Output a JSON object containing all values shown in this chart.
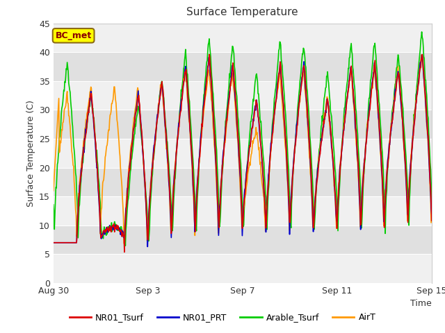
{
  "title": "Surface Temperature",
  "ylabel": "Surface Temperature (C)",
  "xlabel": "Time",
  "ylim": [
    0,
    45
  ],
  "yticks": [
    0,
    5,
    10,
    15,
    20,
    25,
    30,
    35,
    40,
    45
  ],
  "background_color": "#ffffff",
  "plot_bg_light": "#f0f0f0",
  "plot_bg_dark": "#e0e0e0",
  "grid_color": "#ffffff",
  "series": {
    "NR01_Tsurf": {
      "color": "#dd0000",
      "lw": 1.2
    },
    "NR01_PRT": {
      "color": "#0000cc",
      "lw": 1.2
    },
    "Arable_Tsurf": {
      "color": "#00cc00",
      "lw": 1.2
    },
    "AirT": {
      "color": "#ff9900",
      "lw": 1.2
    }
  },
  "annotation": {
    "text": "BC_met",
    "fontsize": 9,
    "color": "#8b0000",
    "bg": "#ffff00",
    "border_color": "#8b6914"
  },
  "xtick_labels": [
    "Aug 30",
    "Sep 3",
    "Sep 7",
    "Sep 11",
    "Sep 15"
  ],
  "n_days": 17
}
